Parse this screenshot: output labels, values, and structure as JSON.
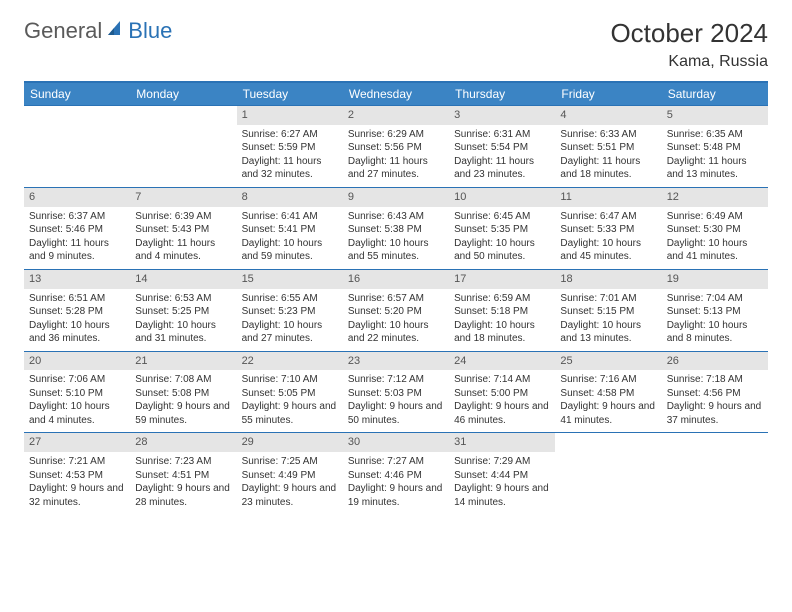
{
  "logo": {
    "text1": "General",
    "text2": "Blue"
  },
  "title": "October 2024",
  "location": "Kama, Russia",
  "colors": {
    "header_bg": "#3b84c4",
    "border": "#2a72b5",
    "daynum_bg": "#e5e5e5",
    "text": "#333333",
    "logo_gray": "#5a5a5a",
    "logo_blue": "#2a72b5"
  },
  "dayHeaders": [
    "Sunday",
    "Monday",
    "Tuesday",
    "Wednesday",
    "Thursday",
    "Friday",
    "Saturday"
  ],
  "weeks": [
    [
      null,
      null,
      {
        "d": "1",
        "sr": "Sunrise: 6:27 AM",
        "ss": "Sunset: 5:59 PM",
        "dl": "Daylight: 11 hours and 32 minutes."
      },
      {
        "d": "2",
        "sr": "Sunrise: 6:29 AM",
        "ss": "Sunset: 5:56 PM",
        "dl": "Daylight: 11 hours and 27 minutes."
      },
      {
        "d": "3",
        "sr": "Sunrise: 6:31 AM",
        "ss": "Sunset: 5:54 PM",
        "dl": "Daylight: 11 hours and 23 minutes."
      },
      {
        "d": "4",
        "sr": "Sunrise: 6:33 AM",
        "ss": "Sunset: 5:51 PM",
        "dl": "Daylight: 11 hours and 18 minutes."
      },
      {
        "d": "5",
        "sr": "Sunrise: 6:35 AM",
        "ss": "Sunset: 5:48 PM",
        "dl": "Daylight: 11 hours and 13 minutes."
      }
    ],
    [
      {
        "d": "6",
        "sr": "Sunrise: 6:37 AM",
        "ss": "Sunset: 5:46 PM",
        "dl": "Daylight: 11 hours and 9 minutes."
      },
      {
        "d": "7",
        "sr": "Sunrise: 6:39 AM",
        "ss": "Sunset: 5:43 PM",
        "dl": "Daylight: 11 hours and 4 minutes."
      },
      {
        "d": "8",
        "sr": "Sunrise: 6:41 AM",
        "ss": "Sunset: 5:41 PM",
        "dl": "Daylight: 10 hours and 59 minutes."
      },
      {
        "d": "9",
        "sr": "Sunrise: 6:43 AM",
        "ss": "Sunset: 5:38 PM",
        "dl": "Daylight: 10 hours and 55 minutes."
      },
      {
        "d": "10",
        "sr": "Sunrise: 6:45 AM",
        "ss": "Sunset: 5:35 PM",
        "dl": "Daylight: 10 hours and 50 minutes."
      },
      {
        "d": "11",
        "sr": "Sunrise: 6:47 AM",
        "ss": "Sunset: 5:33 PM",
        "dl": "Daylight: 10 hours and 45 minutes."
      },
      {
        "d": "12",
        "sr": "Sunrise: 6:49 AM",
        "ss": "Sunset: 5:30 PM",
        "dl": "Daylight: 10 hours and 41 minutes."
      }
    ],
    [
      {
        "d": "13",
        "sr": "Sunrise: 6:51 AM",
        "ss": "Sunset: 5:28 PM",
        "dl": "Daylight: 10 hours and 36 minutes."
      },
      {
        "d": "14",
        "sr": "Sunrise: 6:53 AM",
        "ss": "Sunset: 5:25 PM",
        "dl": "Daylight: 10 hours and 31 minutes."
      },
      {
        "d": "15",
        "sr": "Sunrise: 6:55 AM",
        "ss": "Sunset: 5:23 PM",
        "dl": "Daylight: 10 hours and 27 minutes."
      },
      {
        "d": "16",
        "sr": "Sunrise: 6:57 AM",
        "ss": "Sunset: 5:20 PM",
        "dl": "Daylight: 10 hours and 22 minutes."
      },
      {
        "d": "17",
        "sr": "Sunrise: 6:59 AM",
        "ss": "Sunset: 5:18 PM",
        "dl": "Daylight: 10 hours and 18 minutes."
      },
      {
        "d": "18",
        "sr": "Sunrise: 7:01 AM",
        "ss": "Sunset: 5:15 PM",
        "dl": "Daylight: 10 hours and 13 minutes."
      },
      {
        "d": "19",
        "sr": "Sunrise: 7:04 AM",
        "ss": "Sunset: 5:13 PM",
        "dl": "Daylight: 10 hours and 8 minutes."
      }
    ],
    [
      {
        "d": "20",
        "sr": "Sunrise: 7:06 AM",
        "ss": "Sunset: 5:10 PM",
        "dl": "Daylight: 10 hours and 4 minutes."
      },
      {
        "d": "21",
        "sr": "Sunrise: 7:08 AM",
        "ss": "Sunset: 5:08 PM",
        "dl": "Daylight: 9 hours and 59 minutes."
      },
      {
        "d": "22",
        "sr": "Sunrise: 7:10 AM",
        "ss": "Sunset: 5:05 PM",
        "dl": "Daylight: 9 hours and 55 minutes."
      },
      {
        "d": "23",
        "sr": "Sunrise: 7:12 AM",
        "ss": "Sunset: 5:03 PM",
        "dl": "Daylight: 9 hours and 50 minutes."
      },
      {
        "d": "24",
        "sr": "Sunrise: 7:14 AM",
        "ss": "Sunset: 5:00 PM",
        "dl": "Daylight: 9 hours and 46 minutes."
      },
      {
        "d": "25",
        "sr": "Sunrise: 7:16 AM",
        "ss": "Sunset: 4:58 PM",
        "dl": "Daylight: 9 hours and 41 minutes."
      },
      {
        "d": "26",
        "sr": "Sunrise: 7:18 AM",
        "ss": "Sunset: 4:56 PM",
        "dl": "Daylight: 9 hours and 37 minutes."
      }
    ],
    [
      {
        "d": "27",
        "sr": "Sunrise: 7:21 AM",
        "ss": "Sunset: 4:53 PM",
        "dl": "Daylight: 9 hours and 32 minutes."
      },
      {
        "d": "28",
        "sr": "Sunrise: 7:23 AM",
        "ss": "Sunset: 4:51 PM",
        "dl": "Daylight: 9 hours and 28 minutes."
      },
      {
        "d": "29",
        "sr": "Sunrise: 7:25 AM",
        "ss": "Sunset: 4:49 PM",
        "dl": "Daylight: 9 hours and 23 minutes."
      },
      {
        "d": "30",
        "sr": "Sunrise: 7:27 AM",
        "ss": "Sunset: 4:46 PM",
        "dl": "Daylight: 9 hours and 19 minutes."
      },
      {
        "d": "31",
        "sr": "Sunrise: 7:29 AM",
        "ss": "Sunset: 4:44 PM",
        "dl": "Daylight: 9 hours and 14 minutes."
      },
      null,
      null
    ]
  ]
}
